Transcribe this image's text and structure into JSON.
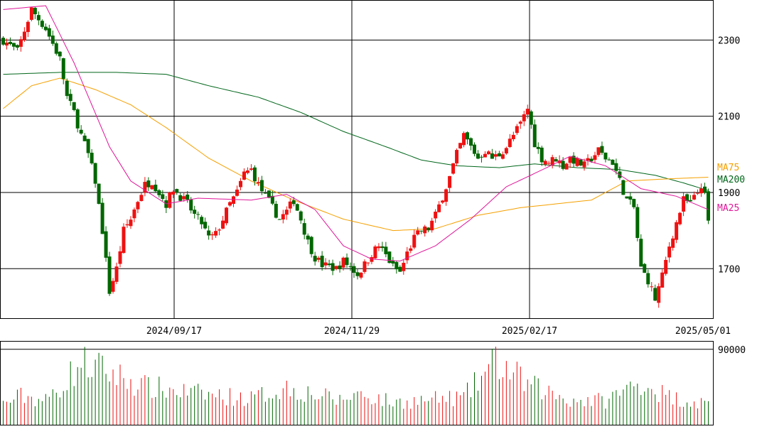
{
  "chart_data": [
    {
      "type": "candlestick",
      "title": "",
      "x_tick_labels": [
        "2024/09/17",
        "2024/11/29",
        "2025/02/17",
        "2025/05/01"
      ],
      "y_tick_labels": [
        "1700",
        "1900",
        "2100",
        "2300"
      ],
      "ylim": [
        1570,
        2405
      ],
      "grid": true,
      "legend": [
        "MA75",
        "MA200",
        "MA25"
      ],
      "colors": {
        "up": "#ee1111",
        "down": "#006600",
        "ma25": "#e0169a",
        "ma75": "#f5a000",
        "ma200": "#00661a",
        "grid": "#000000"
      },
      "sessions": 200,
      "ohlc_keypoints": [
        [
          0,
          2300
        ],
        [
          4,
          2270
        ],
        [
          8,
          2380
        ],
        [
          12,
          2330
        ],
        [
          16,
          2250
        ],
        [
          18,
          2150
        ],
        [
          20,
          2110
        ],
        [
          22,
          2050
        ],
        [
          24,
          2000
        ],
        [
          26,
          1930
        ],
        [
          28,
          1800
        ],
        [
          30,
          1640
        ],
        [
          32,
          1700
        ],
        [
          34,
          1800
        ],
        [
          36,
          1830
        ],
        [
          38,
          1880
        ],
        [
          40,
          1920
        ],
        [
          42,
          1930
        ],
        [
          44,
          1900
        ],
        [
          46,
          1870
        ],
        [
          48,
          1910
        ],
        [
          50,
          1890
        ],
        [
          52,
          1870
        ],
        [
          54,
          1840
        ],
        [
          56,
          1820
        ],
        [
          58,
          1780
        ],
        [
          60,
          1790
        ],
        [
          62,
          1830
        ],
        [
          64,
          1870
        ],
        [
          66,
          1900
        ],
        [
          68,
          1950
        ],
        [
          70,
          1960
        ],
        [
          72,
          1920
        ],
        [
          74,
          1890
        ],
        [
          76,
          1860
        ],
        [
          78,
          1830
        ],
        [
          80,
          1850
        ],
        [
          82,
          1880
        ],
        [
          84,
          1830
        ],
        [
          86,
          1770
        ],
        [
          88,
          1730
        ],
        [
          90,
          1710
        ],
        [
          92,
          1705
        ],
        [
          94,
          1700
        ],
        [
          96,
          1720
        ],
        [
          98,
          1705
        ],
        [
          100,
          1685
        ],
        [
          102,
          1710
        ],
        [
          104,
          1740
        ],
        [
          106,
          1760
        ],
        [
          108,
          1735
        ],
        [
          110,
          1705
        ],
        [
          112,
          1690
        ],
        [
          114,
          1740
        ],
        [
          116,
          1780
        ],
        [
          118,
          1800
        ],
        [
          120,
          1805
        ],
        [
          122,
          1840
        ],
        [
          124,
          1890
        ],
        [
          126,
          1940
        ],
        [
          128,
          2000
        ],
        [
          130,
          2050
        ],
        [
          132,
          2020
        ],
        [
          134,
          1990
        ],
        [
          136,
          2010
        ],
        [
          138,
          1990
        ],
        [
          140,
          2000
        ],
        [
          142,
          2020
        ],
        [
          144,
          2050
        ],
        [
          146,
          2080
        ],
        [
          148,
          2120
        ],
        [
          150,
          2030
        ],
        [
          152,
          1990
        ],
        [
          154,
          1980
        ],
        [
          156,
          1990
        ],
        [
          158,
          1970
        ],
        [
          160,
          1990
        ],
        [
          162,
          1980
        ],
        [
          164,
          1970
        ],
        [
          166,
          1990
        ],
        [
          168,
          2010
        ],
        [
          170,
          1990
        ],
        [
          172,
          1980
        ],
        [
          174,
          1930
        ],
        [
          176,
          1880
        ],
        [
          178,
          1860
        ],
        [
          180,
          1700
        ],
        [
          182,
          1670
        ],
        [
          184,
          1620
        ],
        [
          186,
          1680
        ],
        [
          188,
          1760
        ],
        [
          190,
          1820
        ],
        [
          192,
          1880
        ],
        [
          194,
          1870
        ],
        [
          196,
          1900
        ],
        [
          197,
          1920
        ],
        [
          198,
          1890
        ],
        [
          199,
          1820
        ]
      ],
      "moving_averages": {
        "MA25": [
          [
            0,
            2380
          ],
          [
            12,
            2390
          ],
          [
            20,
            2240
          ],
          [
            30,
            2020
          ],
          [
            36,
            1930
          ],
          [
            46,
            1870
          ],
          [
            55,
            1885
          ],
          [
            70,
            1880
          ],
          [
            80,
            1895
          ],
          [
            88,
            1855
          ],
          [
            96,
            1760
          ],
          [
            104,
            1725
          ],
          [
            112,
            1720
          ],
          [
            122,
            1760
          ],
          [
            132,
            1830
          ],
          [
            142,
            1915
          ],
          [
            150,
            1950
          ],
          [
            160,
            1995
          ],
          [
            170,
            1970
          ],
          [
            180,
            1910
          ],
          [
            190,
            1890
          ],
          [
            199,
            1855
          ]
        ],
        "MA75": [
          [
            0,
            2120
          ],
          [
            8,
            2180
          ],
          [
            16,
            2200
          ],
          [
            26,
            2170
          ],
          [
            36,
            2130
          ],
          [
            46,
            2070
          ],
          [
            58,
            1990
          ],
          [
            70,
            1930
          ],
          [
            82,
            1880
          ],
          [
            96,
            1830
          ],
          [
            110,
            1800
          ],
          [
            122,
            1805
          ],
          [
            134,
            1840
          ],
          [
            146,
            1860
          ],
          [
            156,
            1870
          ],
          [
            166,
            1880
          ],
          [
            176,
            1930
          ],
          [
            186,
            1935
          ],
          [
            199,
            1940
          ]
        ],
        "MA200": [
          [
            0,
            2210
          ],
          [
            16,
            2215
          ],
          [
            32,
            2215
          ],
          [
            46,
            2210
          ],
          [
            58,
            2180
          ],
          [
            72,
            2150
          ],
          [
            84,
            2110
          ],
          [
            96,
            2060
          ],
          [
            108,
            2020
          ],
          [
            118,
            1985
          ],
          [
            128,
            1970
          ],
          [
            140,
            1965
          ],
          [
            150,
            1975
          ],
          [
            162,
            1965
          ],
          [
            174,
            1960
          ],
          [
            184,
            1945
          ],
          [
            192,
            1925
          ],
          [
            199,
            1905
          ]
        ]
      },
      "volume": {
        "y_tick_labels": [
          "90000"
        ],
        "ylim": [
          0,
          100000
        ],
        "peaks": [
          [
            0,
            30000
          ],
          [
            5,
            42000
          ],
          [
            12,
            35000
          ],
          [
            17,
            60000
          ],
          [
            22,
            90000
          ],
          [
            30,
            76000
          ],
          [
            40,
            55000
          ],
          [
            55,
            45000
          ],
          [
            70,
            38000
          ],
          [
            80,
            54000
          ],
          [
            95,
            35000
          ],
          [
            100,
            46000
          ],
          [
            110,
            32000
          ],
          [
            120,
            36000
          ],
          [
            130,
            40000
          ],
          [
            139,
            92000
          ],
          [
            148,
            58000
          ],
          [
            160,
            36000
          ],
          [
            170,
            35000
          ],
          [
            180,
            62000
          ],
          [
            188,
            40000
          ],
          [
            199,
            30000
          ]
        ]
      }
    }
  ]
}
